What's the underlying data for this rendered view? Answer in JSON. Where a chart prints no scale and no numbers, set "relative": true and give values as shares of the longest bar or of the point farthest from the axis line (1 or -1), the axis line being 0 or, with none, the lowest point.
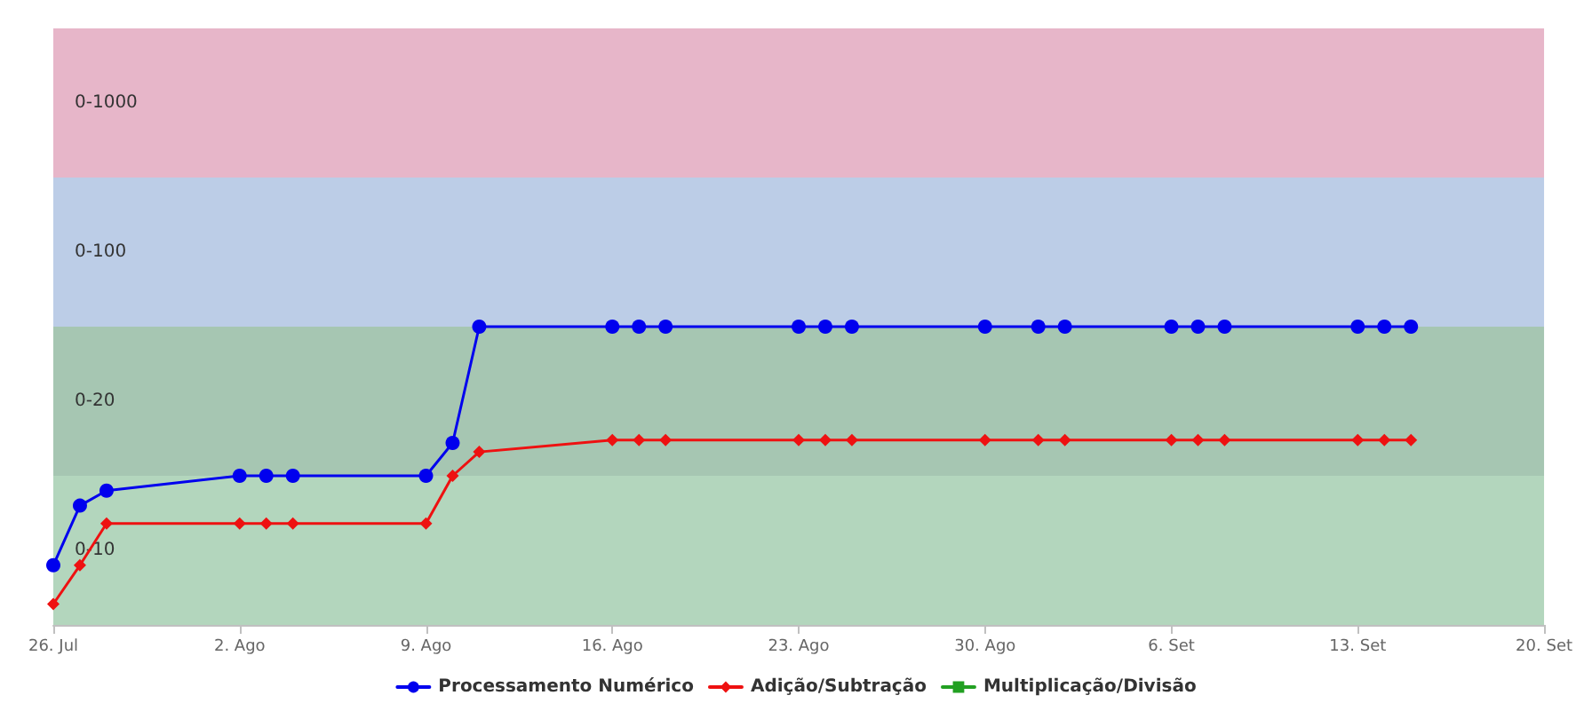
{
  "chart_data": {
    "type": "line",
    "relative": true,
    "grid": false,
    "legend": "bottom",
    "xlim": [
      "--07-26",
      "--09-20"
    ],
    "xticks": [
      {
        "value": "--07-26",
        "label": "26. Jul"
      },
      {
        "value": "--08-02",
        "label": "2. Ago"
      },
      {
        "value": "--08-09",
        "label": "9. Ago"
      },
      {
        "value": "--08-16",
        "label": "16. Ago"
      },
      {
        "value": "--08-23",
        "label": "23. Ago"
      },
      {
        "value": "--08-30",
        "label": "30. Ago"
      },
      {
        "value": "--09-06",
        "label": "6. Set"
      },
      {
        "value": "--09-13",
        "label": "13. Set"
      },
      {
        "value": "--09-20",
        "label": "20. Set"
      }
    ],
    "x": [
      "--07-26",
      "--07-27",
      "--07-28",
      "--08-02",
      "--08-03",
      "--08-04",
      "--08-09",
      "--08-10",
      "--08-11",
      "--08-16",
      "--08-17",
      "--08-18",
      "--08-23",
      "--08-24",
      "--08-25",
      "--08-30",
      "--09-01",
      "--09-02",
      "--09-06",
      "--09-07",
      "--09-08",
      "--09-13",
      "--09-14",
      "--09-15"
    ],
    "series": [
      {
        "name": "Processamento Numérico",
        "color": "#0000ee",
        "marker": "circle",
        "values": [
          0.2,
          0.4,
          0.45,
          0.5,
          0.5,
          0.5,
          0.5,
          0.61,
          1,
          1,
          1,
          1,
          1,
          1,
          1,
          1,
          1,
          1,
          1,
          1,
          1,
          1,
          1,
          1
        ]
      },
      {
        "name": "Adição/Subtração",
        "color": "#ee1111",
        "marker": "diamond",
        "values": [
          0.07,
          0.2,
          0.34,
          0.34,
          0.34,
          0.34,
          0.34,
          0.5,
          0.58,
          0.62,
          0.62,
          0.62,
          0.62,
          0.62,
          0.62,
          0.62,
          0.62,
          0.62,
          0.62,
          0.62,
          0.62,
          0.62,
          0.62,
          0.62
        ]
      },
      {
        "name": "Multiplicação/Divisão",
        "color": "#22a022",
        "marker": "square",
        "values": [
          null,
          null,
          null,
          null,
          null,
          null,
          null,
          null,
          null,
          null,
          null,
          null,
          null,
          null,
          null,
          null,
          null,
          null,
          null,
          null,
          null,
          null,
          null,
          null
        ]
      }
    ],
    "bands": [
      {
        "axis": "y",
        "from": 0,
        "to": 0.5,
        "label": "0-10",
        "color": "#b3d6bd"
      },
      {
        "axis": "y",
        "from": 0.5,
        "to": 1,
        "label": "0-20",
        "color": "#a6c6b2"
      },
      {
        "axis": "y",
        "from": 1,
        "to": 1.5,
        "label": "0-100",
        "color": "#bccde7"
      },
      {
        "axis": "y",
        "from": 1.5,
        "to": 2,
        "label": "0-1000",
        "color": "#e7b6c9"
      }
    ]
  }
}
